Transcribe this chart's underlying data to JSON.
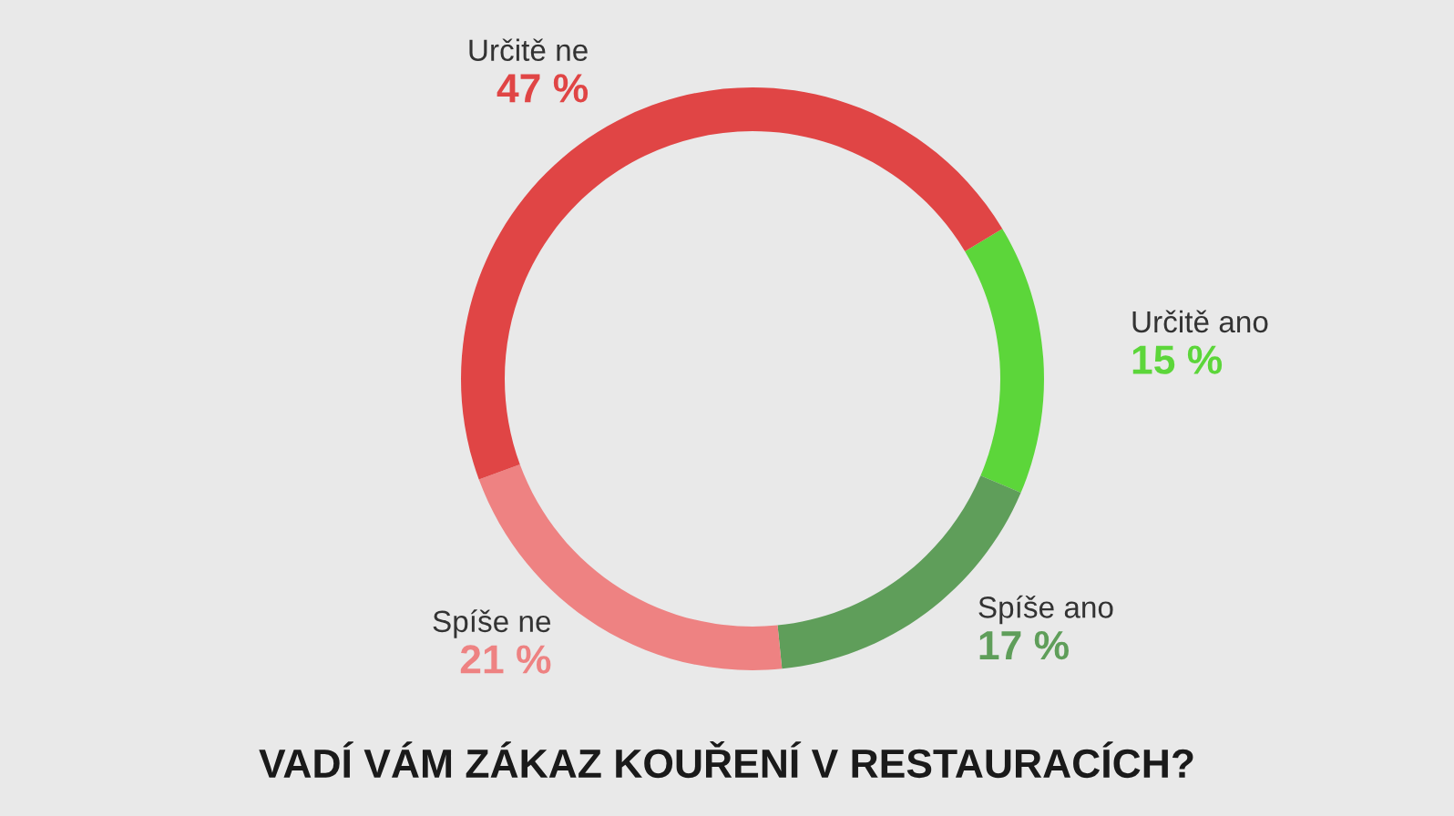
{
  "chart_data": {
    "type": "donut",
    "title": "VADÍ VÁM ZÁKAZ KOUŘENÍ V RESTAURACÍCH?",
    "categories": [
      "Určitě ano",
      "Spíše ano",
      "Spíše ne",
      "Určitě ne"
    ],
    "values": [
      15,
      17,
      21,
      47
    ],
    "colors": [
      "#5cd63a",
      "#5f9e5a",
      "#ee8282",
      "#e04545"
    ],
    "value_labels": [
      "15 %",
      "17 %",
      "21 %",
      "47 %"
    ],
    "legend": false
  }
}
